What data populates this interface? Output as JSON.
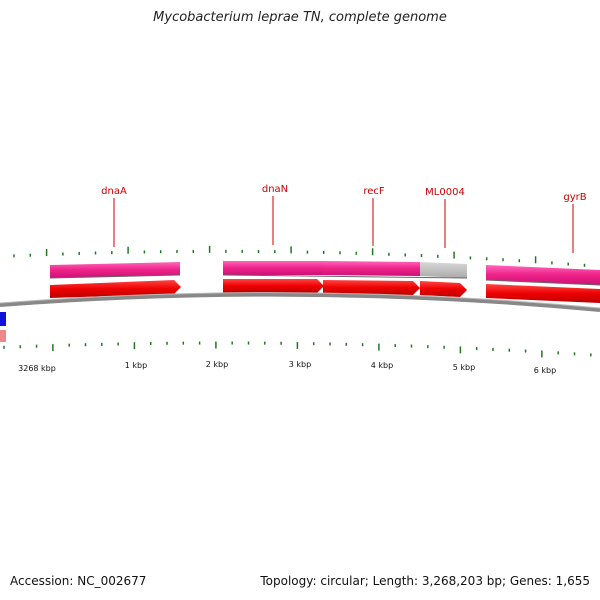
{
  "header": {
    "title": "Mycobacterium leprae TN, complete genome"
  },
  "footer": {
    "accession": "Accession: NC_002677",
    "summary": "Topology: circular; Length: 3,268,203 bp; Genes: 1,655"
  },
  "genes": [
    {
      "name": "dnaA"
    },
    {
      "name": "dnaN"
    },
    {
      "name": "recF"
    },
    {
      "name": "ML0004"
    },
    {
      "name": "gyrB"
    }
  ],
  "axis": {
    "tick_labels": [
      "3268 kbp",
      "1 kbp",
      "2 kbp",
      "3 kbp",
      "4 kbp",
      "5 kbp",
      "6 kbp"
    ]
  },
  "colors": {
    "gene_label": "#cc0000",
    "cds_arrow": "#ee1111",
    "gene_bar": "#ee2288",
    "gene_bar_grey": "#bbbbbb",
    "backbone": "#777777",
    "tick": "#227722",
    "edge_blue": "#1111dd",
    "edge_pink": "#ee8888"
  }
}
